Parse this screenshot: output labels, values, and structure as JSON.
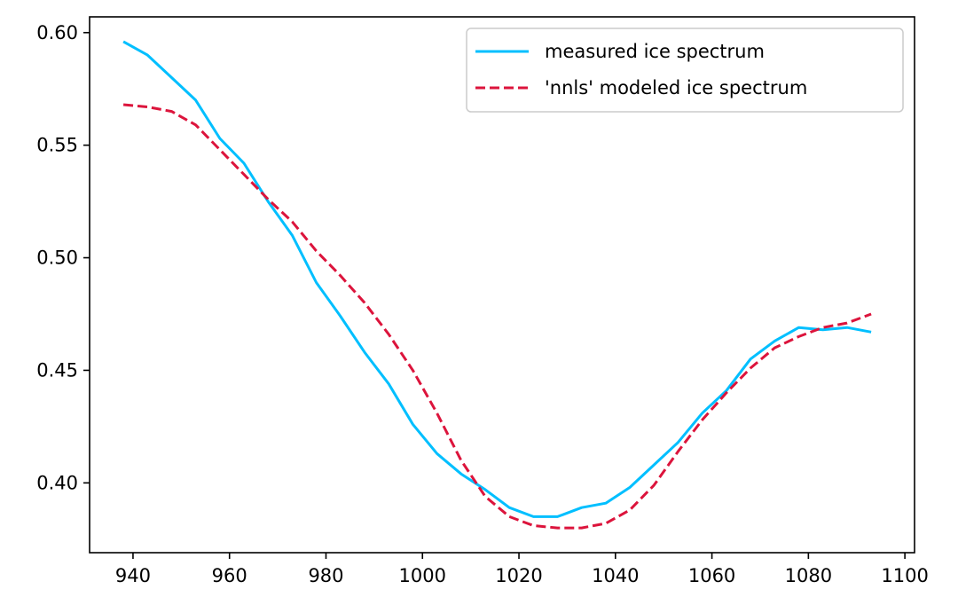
{
  "chart_data": {
    "type": "line",
    "title": "",
    "xlabel": "",
    "ylabel": "",
    "xlim": [
      931,
      1102
    ],
    "ylim": [
      0.369,
      0.607
    ],
    "xticks": [
      940,
      960,
      980,
      1000,
      1020,
      1040,
      1060,
      1080,
      1100
    ],
    "yticks": [
      0.4,
      0.45,
      0.5,
      0.55,
      0.6
    ],
    "xtick_labels": [
      "940",
      "960",
      "980",
      "1000",
      "1020",
      "1040",
      "1060",
      "1080",
      "1100"
    ],
    "ytick_labels": [
      "0.40",
      "0.45",
      "0.50",
      "0.55",
      "0.60"
    ],
    "grid": false,
    "legend_position": "top-right",
    "series": [
      {
        "name": "measured ice spectrum",
        "color": "#00bfff",
        "style": "solid",
        "x": [
          938,
          943,
          948,
          953,
          958,
          963,
          968,
          973,
          978,
          983,
          988,
          993,
          998,
          1003,
          1008,
          1013,
          1018,
          1023,
          1028,
          1033,
          1038,
          1043,
          1048,
          1053,
          1058,
          1063,
          1068,
          1073,
          1078,
          1083,
          1088,
          1093
        ],
        "y": [
          0.596,
          0.59,
          0.58,
          0.57,
          0.553,
          0.542,
          0.525,
          0.51,
          0.489,
          0.474,
          0.458,
          0.444,
          0.426,
          0.413,
          0.404,
          0.397,
          0.389,
          0.385,
          0.385,
          0.389,
          0.391,
          0.398,
          0.408,
          0.418,
          0.431,
          0.441,
          0.455,
          0.463,
          0.469,
          0.468,
          0.469,
          0.467
        ]
      },
      {
        "name": "'nnls' modeled ice spectrum",
        "color": "#dc143c",
        "style": "dashed",
        "x": [
          938,
          943,
          948,
          953,
          958,
          963,
          968,
          973,
          978,
          983,
          988,
          993,
          998,
          1003,
          1008,
          1013,
          1018,
          1023,
          1028,
          1033,
          1038,
          1043,
          1048,
          1053,
          1058,
          1063,
          1068,
          1073,
          1078,
          1083,
          1088,
          1093
        ],
        "y": [
          0.568,
          0.567,
          0.565,
          0.559,
          0.548,
          0.537,
          0.526,
          0.516,
          0.503,
          0.492,
          0.48,
          0.466,
          0.45,
          0.431,
          0.41,
          0.394,
          0.385,
          0.381,
          0.38,
          0.38,
          0.382,
          0.388,
          0.399,
          0.414,
          0.428,
          0.44,
          0.451,
          0.46,
          0.465,
          0.469,
          0.471,
          0.475
        ]
      }
    ]
  }
}
